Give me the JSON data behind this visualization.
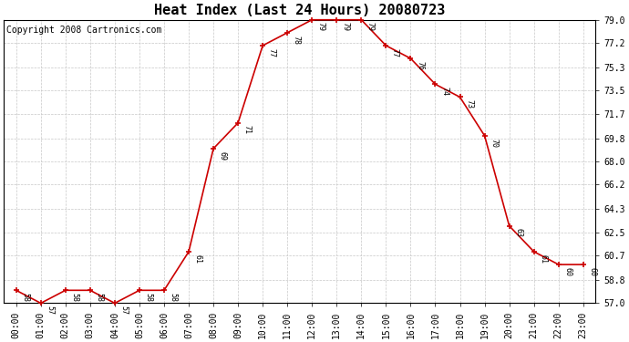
{
  "title": "Heat Index (Last 24 Hours) 20080723",
  "copyright": "Copyright 2008 Cartronics.com",
  "x_labels": [
    "00:00",
    "01:00",
    "02:00",
    "03:00",
    "04:00",
    "05:00",
    "06:00",
    "07:00",
    "08:00",
    "09:00",
    "10:00",
    "11:00",
    "12:00",
    "13:00",
    "14:00",
    "15:00",
    "16:00",
    "17:00",
    "18:00",
    "19:00",
    "20:00",
    "21:00",
    "22:00",
    "23:00"
  ],
  "y_vals": [
    58,
    57,
    58,
    58,
    57,
    58,
    58,
    61,
    69,
    71,
    77,
    78,
    79,
    79,
    79,
    77,
    76,
    74,
    73,
    70,
    63,
    61,
    60,
    60
  ],
  "ylim": [
    57.0,
    79.0
  ],
  "yticks": [
    57.0,
    58.8,
    60.7,
    62.5,
    64.3,
    66.2,
    68.0,
    69.8,
    71.7,
    73.5,
    75.3,
    77.2,
    79.0
  ],
  "line_color": "#cc0000",
  "marker": "+",
  "marker_color": "#cc0000",
  "bg_color": "#ffffff",
  "grid_color": "#c8c8c8",
  "title_fontsize": 11,
  "label_fontsize": 7,
  "annot_fontsize": 6,
  "copyright_fontsize": 7
}
